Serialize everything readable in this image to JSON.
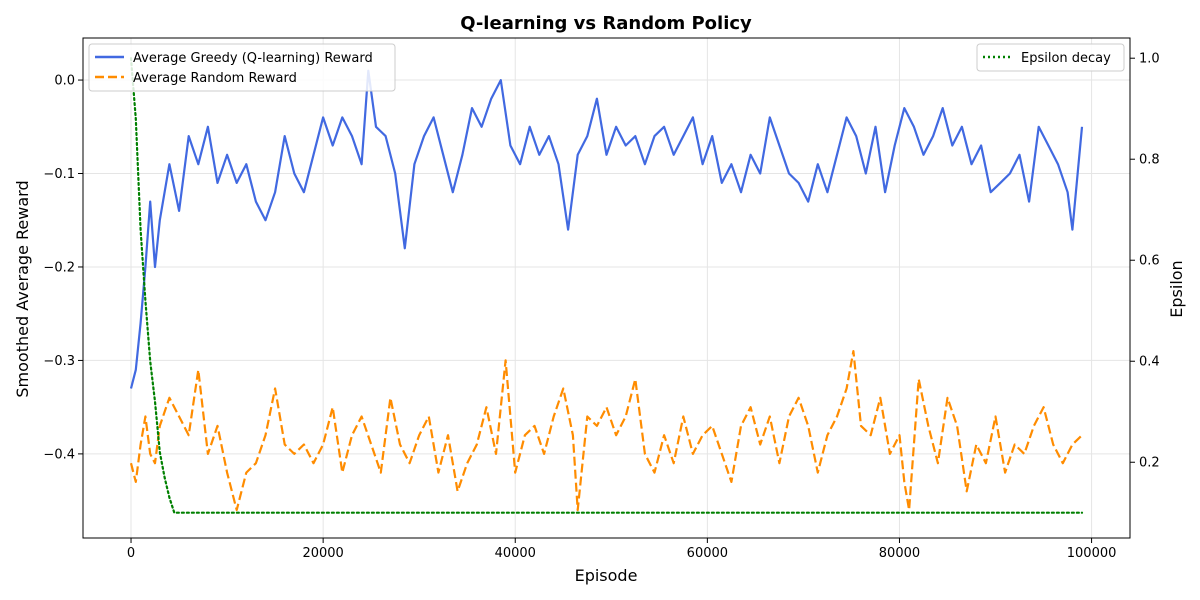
{
  "chart_data": {
    "type": "line",
    "title": "Q-learning vs Random Policy",
    "xlabel": "Episode",
    "ylabel": "Smoothed Average Reward",
    "y2label": "Epsilon",
    "xlim": [
      -5000,
      104000
    ],
    "ylim": [
      -0.49,
      0.045
    ],
    "y2lim": [
      0.05,
      1.04
    ],
    "xticks": [
      0,
      20000,
      40000,
      60000,
      80000,
      100000
    ],
    "yticks": [
      0.0,
      -0.1,
      -0.2,
      -0.3,
      -0.4
    ],
    "y2ticks": [
      0.2,
      0.4,
      0.6,
      0.8,
      1.0
    ],
    "grid": true,
    "legend_left_position": "upper-left",
    "legend_right_position": "upper-right",
    "series": [
      {
        "name": "Average Greedy (Q-learning) Reward",
        "axis": "left",
        "color": "#4169E1",
        "style": "solid",
        "x": [
          0,
          500,
          1000,
          1500,
          2000,
          2500,
          3000,
          4000,
          5000,
          6000,
          7000,
          8000,
          9000,
          10000,
          11000,
          12000,
          13000,
          14000,
          15000,
          16000,
          17000,
          18000,
          19000,
          20000,
          21000,
          22000,
          23000,
          24000,
          24700,
          25500,
          26500,
          27500,
          28500,
          29500,
          30500,
          31500,
          32500,
          33500,
          34500,
          35500,
          36500,
          37500,
          38500,
          39500,
          40500,
          41500,
          42500,
          43500,
          44500,
          45500,
          46500,
          47500,
          48500,
          49500,
          50500,
          51500,
          52500,
          53500,
          54500,
          55500,
          56500,
          57500,
          58500,
          59500,
          60500,
          61500,
          62500,
          63500,
          64500,
          65500,
          66500,
          67500,
          68500,
          69500,
          70500,
          71500,
          72500,
          73500,
          74500,
          75500,
          76500,
          77500,
          78500,
          79500,
          80500,
          81500,
          82500,
          83500,
          84500,
          85500,
          86500,
          87500,
          88500,
          89500,
          90500,
          91500,
          92500,
          93500,
          94500,
          95500,
          96500,
          97500,
          98000,
          99000
        ],
        "y": [
          -0.33,
          -0.31,
          -0.26,
          -0.2,
          -0.13,
          -0.2,
          -0.15,
          -0.09,
          -0.14,
          -0.06,
          -0.09,
          -0.05,
          -0.11,
          -0.08,
          -0.11,
          -0.09,
          -0.13,
          -0.15,
          -0.12,
          -0.06,
          -0.1,
          -0.12,
          -0.08,
          -0.04,
          -0.07,
          -0.04,
          -0.06,
          -0.09,
          0.01,
          -0.05,
          -0.06,
          -0.1,
          -0.18,
          -0.09,
          -0.06,
          -0.04,
          -0.08,
          -0.12,
          -0.08,
          -0.03,
          -0.05,
          -0.02,
          0.0,
          -0.07,
          -0.09,
          -0.05,
          -0.08,
          -0.06,
          -0.09,
          -0.16,
          -0.08,
          -0.06,
          -0.02,
          -0.08,
          -0.05,
          -0.07,
          -0.06,
          -0.09,
          -0.06,
          -0.05,
          -0.08,
          -0.06,
          -0.04,
          -0.09,
          -0.06,
          -0.11,
          -0.09,
          -0.12,
          -0.08,
          -0.1,
          -0.04,
          -0.07,
          -0.1,
          -0.11,
          -0.13,
          -0.09,
          -0.12,
          -0.08,
          -0.04,
          -0.06,
          -0.1,
          -0.05,
          -0.12,
          -0.07,
          -0.03,
          -0.05,
          -0.08,
          -0.06,
          -0.03,
          -0.07,
          -0.05,
          -0.09,
          -0.07,
          -0.12,
          -0.11,
          -0.1,
          -0.08,
          -0.13,
          -0.05,
          -0.07,
          -0.09,
          -0.12,
          -0.16,
          -0.05
        ]
      },
      {
        "name": "Average Random Reward",
        "axis": "left",
        "color": "#FF8C00",
        "style": "dashed",
        "x": [
          0,
          500,
          1000,
          1500,
          2000,
          2500,
          3000,
          4000,
          5000,
          6000,
          7000,
          8000,
          9000,
          10000,
          11000,
          12000,
          13000,
          14000,
          15000,
          16000,
          17000,
          18000,
          19000,
          20000,
          21000,
          22000,
          23000,
          24000,
          25000,
          26000,
          27000,
          28000,
          29000,
          30000,
          31000,
          32000,
          33000,
          34000,
          35000,
          36000,
          37000,
          38000,
          39000,
          40000,
          41000,
          42000,
          43000,
          44000,
          45000,
          46000,
          46500,
          47500,
          48500,
          49500,
          50500,
          51500,
          52500,
          53500,
          54500,
          55500,
          56500,
          57500,
          58500,
          59500,
          60500,
          61500,
          62500,
          63500,
          64500,
          65500,
          66500,
          67500,
          68500,
          69500,
          70500,
          71500,
          72500,
          73500,
          74500,
          75200,
          76000,
          77000,
          78000,
          79000,
          80000,
          80500,
          81000,
          82000,
          83000,
          84000,
          85000,
          86000,
          87000,
          88000,
          89000,
          90000,
          91000,
          92000,
          93000,
          94000,
          95000,
          96000,
          97000,
          98000,
          99000
        ],
        "y": [
          -0.41,
          -0.43,
          -0.39,
          -0.36,
          -0.4,
          -0.41,
          -0.37,
          -0.34,
          -0.36,
          -0.38,
          -0.31,
          -0.4,
          -0.37,
          -0.42,
          -0.46,
          -0.42,
          -0.41,
          -0.38,
          -0.33,
          -0.39,
          -0.4,
          -0.39,
          -0.41,
          -0.39,
          -0.35,
          -0.42,
          -0.38,
          -0.36,
          -0.39,
          -0.42,
          -0.34,
          -0.39,
          -0.41,
          -0.38,
          -0.36,
          -0.42,
          -0.38,
          -0.44,
          -0.41,
          -0.39,
          -0.35,
          -0.4,
          -0.3,
          -0.42,
          -0.38,
          -0.37,
          -0.4,
          -0.36,
          -0.33,
          -0.38,
          -0.46,
          -0.36,
          -0.37,
          -0.35,
          -0.38,
          -0.36,
          -0.32,
          -0.4,
          -0.42,
          -0.38,
          -0.41,
          -0.36,
          -0.4,
          -0.38,
          -0.37,
          -0.4,
          -0.43,
          -0.37,
          -0.35,
          -0.39,
          -0.36,
          -0.41,
          -0.36,
          -0.34,
          -0.37,
          -0.42,
          -0.38,
          -0.36,
          -0.33,
          -0.29,
          -0.37,
          -0.38,
          -0.34,
          -0.4,
          -0.38,
          -0.43,
          -0.46,
          -0.32,
          -0.37,
          -0.41,
          -0.34,
          -0.37,
          -0.44,
          -0.39,
          -0.41,
          -0.36,
          -0.42,
          -0.39,
          -0.4,
          -0.37,
          -0.35,
          -0.39,
          -0.41,
          -0.39,
          -0.38
        ]
      },
      {
        "name": "Epsilon decay",
        "axis": "right",
        "color": "#008000",
        "style": "dotted",
        "x": [
          0,
          500,
          1000,
          1500,
          2000,
          2500,
          3000,
          3500,
          4000,
          4500,
          99000
        ],
        "y": [
          1.0,
          0.88,
          0.66,
          0.52,
          0.4,
          0.32,
          0.22,
          0.17,
          0.13,
          0.1,
          0.1
        ]
      }
    ]
  }
}
